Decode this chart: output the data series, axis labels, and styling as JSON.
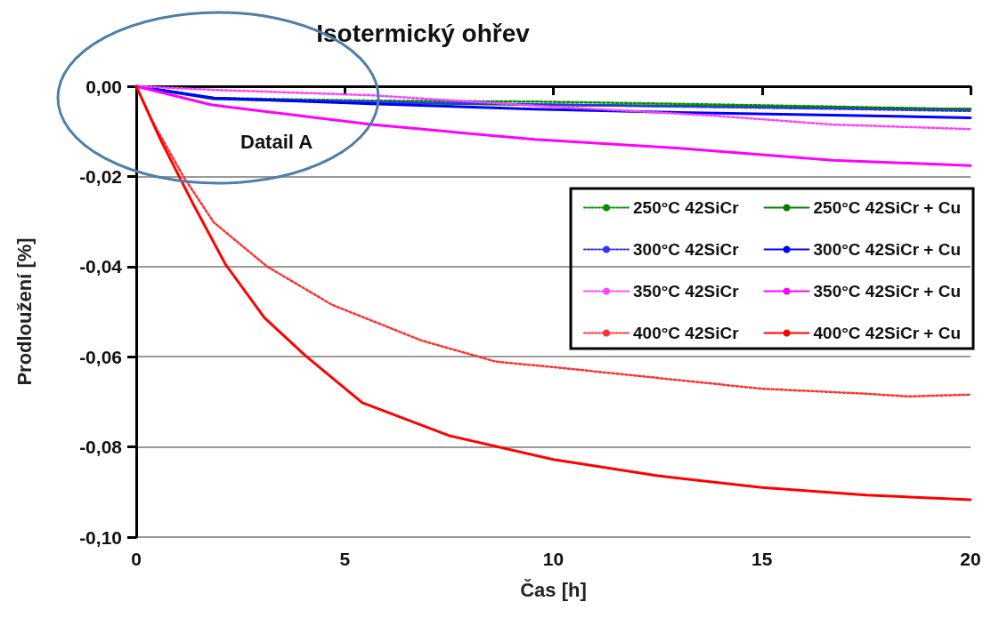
{
  "chart_data": {
    "type": "line",
    "title": "Isotermický ohřev",
    "xlabel": "Čas [h]",
    "ylabel": "Prodloužení [%]",
    "annotations": [
      "Datail A"
    ],
    "xlim": [
      0,
      20
    ],
    "xticks": [
      0,
      5,
      10,
      15,
      20
    ],
    "ylim": [
      -0.1,
      0
    ],
    "yticks": [
      {
        "value": -0.1,
        "label": "-0,10"
      },
      {
        "value": -0.08,
        "label": "-0,08"
      },
      {
        "value": -0.06,
        "label": "-0,06"
      },
      {
        "value": -0.04,
        "label": "-0,04"
      },
      {
        "value": -0.02,
        "label": "-0,02"
      },
      {
        "value": 0,
        "label": "0,00"
      }
    ],
    "grid": "y",
    "legend": "right",
    "marker": "none",
    "series": [
      {
        "name": "250°C 42SiCr",
        "color": "#009000",
        "line_style": "dotted",
        "x": [
          0,
          1.86,
          5.64,
          9.55,
          13,
          16.7,
          20
        ],
        "values": [
          0,
          -0.0026,
          -0.0032,
          -0.0034,
          -0.0039,
          -0.0045,
          -0.0051
        ]
      },
      {
        "name": "250°C 42SiCr + Cu",
        "color": "#008000",
        "line_style": "solid",
        "x": [
          0,
          1.86,
          5.64,
          9.55,
          13,
          16.7,
          20
        ],
        "values": [
          0,
          -0.0028,
          -0.0036,
          -0.0041,
          -0.0044,
          -0.0048,
          -0.0051
        ]
      },
      {
        "name": "300°C 42SiCr",
        "color": "#3030ff",
        "line_style": "dotted",
        "x": [
          0,
          1.86,
          5.64,
          9.55,
          13,
          16.7,
          20
        ],
        "values": [
          0,
          -0.0027,
          -0.0035,
          -0.004,
          -0.0045,
          -0.005,
          -0.0055
        ]
      },
      {
        "name": "300°C 42SiCr + Cu",
        "color": "#0000ff",
        "line_style": "solid",
        "x": [
          0,
          1.86,
          5.64,
          9.55,
          13,
          16.7,
          20
        ],
        "values": [
          0,
          -0.0026,
          -0.0039,
          -0.0051,
          -0.0058,
          -0.0064,
          -0.007
        ]
      },
      {
        "name": "350°C 42SiCr",
        "color": "#ff40ff",
        "line_style": "dotted",
        "x": [
          0,
          1.86,
          5.64,
          9.55,
          13.8,
          16.7,
          20
        ],
        "values": [
          0,
          -0.0008,
          -0.002,
          -0.0043,
          -0.0065,
          -0.0085,
          -0.0095
        ]
      },
      {
        "name": "350°C 42SiCr + Cu",
        "color": "#ff00ff",
        "line_style": "solid",
        "x": [
          0,
          1.79,
          5.64,
          9.55,
          13.1,
          16.7,
          20
        ],
        "values": [
          0,
          -0.0041,
          -0.0085,
          -0.0118,
          -0.0138,
          -0.0164,
          -0.0176
        ]
      },
      {
        "name": "400°C 42SiCr",
        "color": "#ff3030",
        "line_style": "dotted",
        "x": [
          0,
          0.43,
          1.15,
          1.86,
          3.14,
          4.7,
          6.84,
          8.63,
          10,
          12.5,
          15,
          17.5,
          18.5,
          20
        ],
        "values": [
          0,
          -0.0085,
          -0.0203,
          -0.0302,
          -0.04,
          -0.0485,
          -0.0564,
          -0.0611,
          -0.0623,
          -0.0647,
          -0.0671,
          -0.0682,
          -0.0688,
          -0.0684
        ]
      },
      {
        "name": "400°C 42SiCr + Cu",
        "color": "#ff0000",
        "line_style": "solid",
        "x": [
          0,
          0.58,
          1.37,
          2.14,
          3.07,
          4.06,
          5,
          5.42,
          7.5,
          10,
          12.5,
          15,
          17.5,
          20
        ],
        "values": [
          0,
          -0.0118,
          -0.0262,
          -0.0395,
          -0.0513,
          -0.0598,
          -0.067,
          -0.0702,
          -0.0775,
          -0.0828,
          -0.0864,
          -0.089,
          -0.0907,
          -0.0917
        ]
      }
    ]
  }
}
